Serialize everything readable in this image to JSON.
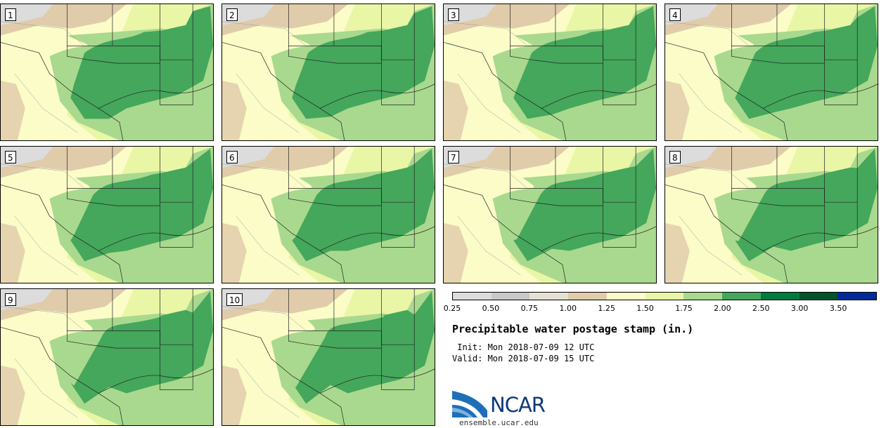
{
  "panels": [
    {
      "label": "1"
    },
    {
      "label": "2"
    },
    {
      "label": "3"
    },
    {
      "label": "4"
    },
    {
      "label": "5"
    },
    {
      "label": "6"
    },
    {
      "label": "7"
    },
    {
      "label": "8"
    },
    {
      "label": "9"
    },
    {
      "label": "10"
    }
  ],
  "legend": {
    "colors": [
      "#dcdcdc",
      "#c8c8c8",
      "#e6e0d3",
      "#e0ccaa",
      "#fbfcc8",
      "#e9f6a6",
      "#a9d98e",
      "#44a75b",
      "#007b3e",
      "#00532a",
      "#002a9c"
    ],
    "ticks": [
      "0.25",
      "0.50",
      "0.75",
      "1.00",
      "1.25",
      "1.50",
      "1.75",
      "2.00",
      "2.50",
      "3.00",
      "3.50"
    ]
  },
  "title": "Precipitable water postage stamp (in.)",
  "init_line": " Init: Mon 2018-07-09 12 UTC",
  "valid_line": "Valid: Mon 2018-07-09 15 UTC",
  "logo": {
    "word": "NCAR",
    "url": "ensemble.ucar.edu"
  },
  "map_colors": {
    "gray": "#dcdcdc",
    "tan": "#e0ccaa",
    "pale": "#fbfcc8",
    "lime": "#e9f6a6",
    "light_green": "#a9d98e",
    "green": "#44a75b"
  }
}
